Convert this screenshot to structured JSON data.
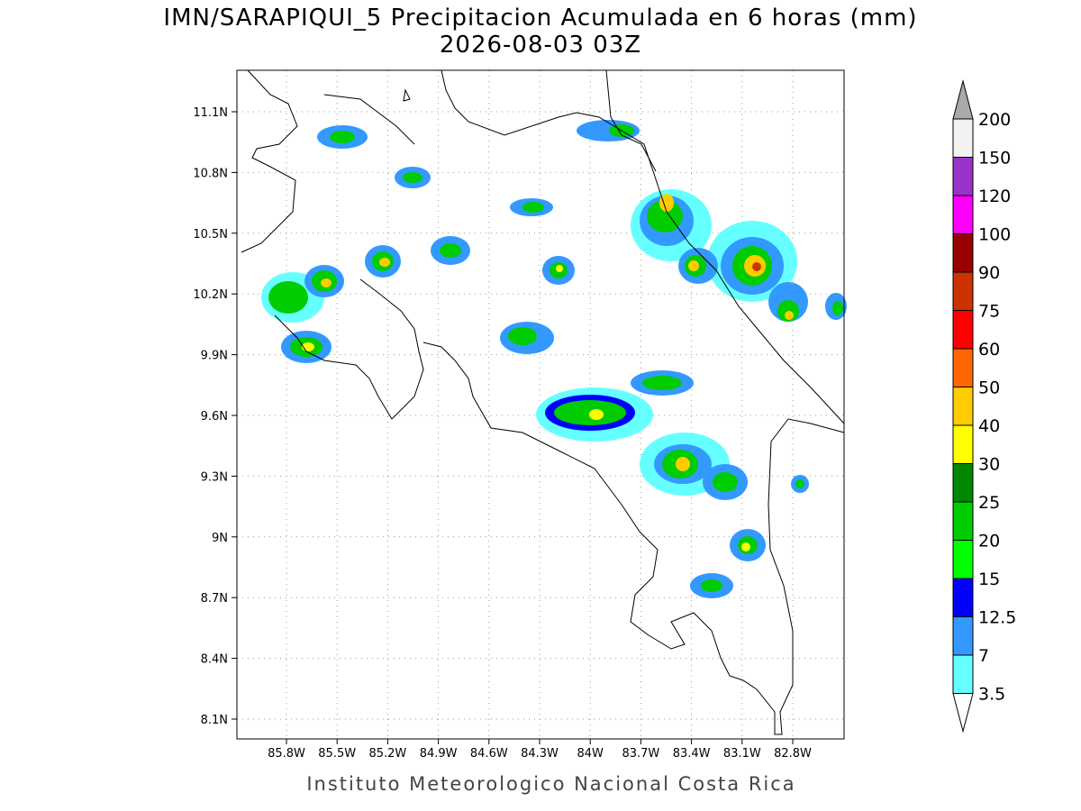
{
  "header": {
    "title": "IMN/SARAPIQUI_5 Precipitacion Acumulada en 6 horas (mm)",
    "subtitle": "2026-08-03 03Z"
  },
  "map": {
    "lat_labels": [
      "11.1N",
      "10.8N",
      "10.5N",
      "10.2N",
      "9.9N",
      "9.6N",
      "9.3N",
      "9N",
      "8.7N",
      "8.4N",
      "8.1N"
    ],
    "lon_labels": [
      "85.8W",
      "85.5W",
      "85.2W",
      "84.9W",
      "84.6W",
      "84.3W",
      "84W",
      "83.7W",
      "83.4W",
      "83.1W",
      "82.8W"
    ],
    "grid": true
  },
  "legend": {
    "labels": [
      "200",
      "150",
      "120",
      "100",
      "90",
      "75",
      "60",
      "50",
      "40",
      "30",
      "25",
      "20",
      "15",
      "12.5",
      "7",
      "3.5"
    ],
    "colors": [
      "#f2f2f2",
      "#9933cc",
      "#ff00ff",
      "#990000",
      "#cc3300",
      "#ff0000",
      "#ff6600",
      "#ffcc00",
      "#ffff00",
      "#008800",
      "#00cc00",
      "#00ff00",
      "#0000ff",
      "#3399ff",
      "#66ffff"
    ],
    "over_color": "#aaaaaa",
    "under_color": "#ffffff"
  },
  "footer": {
    "text": "Instituto Meteorologico Nacional Costa Rica"
  }
}
